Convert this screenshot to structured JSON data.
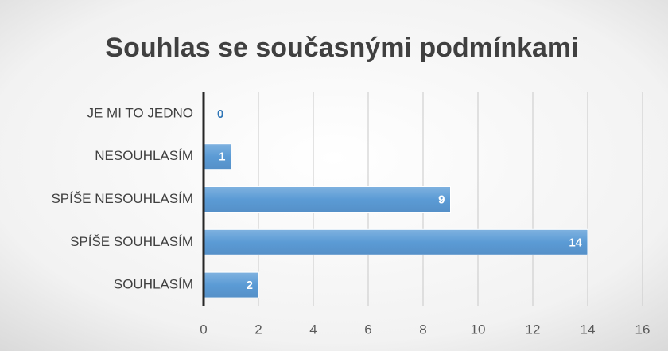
{
  "chart_data": {
    "type": "barh",
    "title": "Souhlas se současnými podmínkami",
    "categories": [
      "JE MI TO JEDNO",
      "NESOUHLASÍM",
      "SPÍŠE NESOUHLASÍM",
      "SPÍŠE SOUHLASÍM",
      "SOUHLASÍM"
    ],
    "values": [
      0,
      1,
      9,
      14,
      2
    ],
    "color": "#5b9bd5",
    "xlim": [
      0,
      16
    ],
    "xticks": [
      0,
      2,
      4,
      6,
      8,
      10,
      12,
      14,
      16
    ],
    "grid": true
  }
}
